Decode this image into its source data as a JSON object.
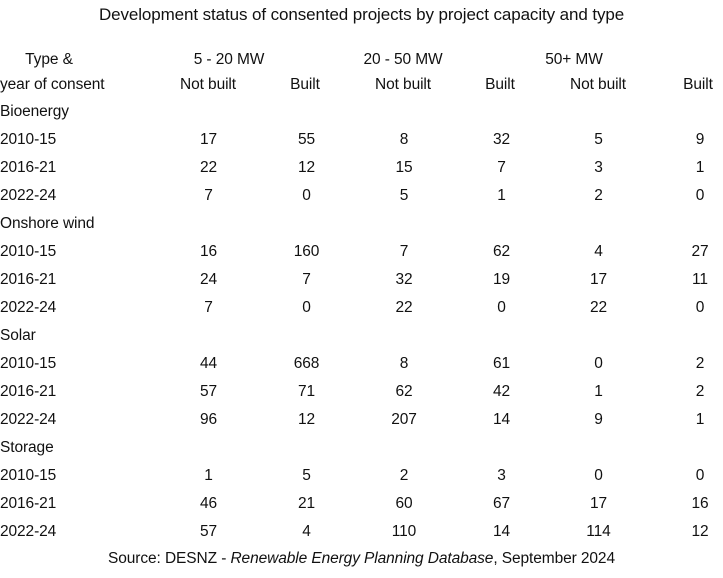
{
  "chart_data": {
    "type": "table",
    "title": "Development status of consented projects by project capacity and type",
    "corner_header_line1": "Type &",
    "corner_header_line2": "year of consent",
    "capacity_groups": [
      "5 - 20 MW",
      "20 - 50 MW",
      "50+ MW"
    ],
    "subheaders": [
      "Not built",
      "Built",
      "Not built",
      "Built",
      "Not built",
      "Built"
    ],
    "columns": [
      "Type & year of consent",
      "5-20 MW Not built",
      "5-20 MW Built",
      "20-50 MW Not built",
      "20-50 MW Built",
      "50+ MW Not built",
      "50+ MW Built"
    ],
    "sections": [
      {
        "type": "Bioenergy",
        "rows": [
          {
            "period": "2010-15",
            "values": [
              17,
              55,
              8,
              32,
              5,
              9
            ]
          },
          {
            "period": "2016-21",
            "values": [
              22,
              12,
              15,
              7,
              3,
              1
            ]
          },
          {
            "period": "2022-24",
            "values": [
              7,
              0,
              5,
              1,
              2,
              0
            ]
          }
        ]
      },
      {
        "type": "Onshore wind",
        "rows": [
          {
            "period": "2010-15",
            "values": [
              16,
              160,
              7,
              62,
              4,
              27
            ]
          },
          {
            "period": "2016-21",
            "values": [
              24,
              7,
              32,
              19,
              17,
              11
            ]
          },
          {
            "period": "2022-24",
            "values": [
              7,
              0,
              22,
              0,
              22,
              0
            ]
          }
        ]
      },
      {
        "type": "Solar",
        "rows": [
          {
            "period": "2010-15",
            "values": [
              44,
              668,
              8,
              61,
              0,
              2
            ]
          },
          {
            "period": "2016-21",
            "values": [
              57,
              71,
              62,
              42,
              1,
              2
            ]
          },
          {
            "period": "2022-24",
            "values": [
              96,
              12,
              207,
              14,
              9,
              1
            ]
          }
        ]
      },
      {
        "type": "Storage",
        "rows": [
          {
            "period": "2010-15",
            "values": [
              1,
              5,
              2,
              3,
              0,
              0
            ]
          },
          {
            "period": "2016-21",
            "values": [
              46,
              21,
              60,
              67,
              17,
              16
            ]
          },
          {
            "period": "2022-24",
            "values": [
              57,
              4,
              110,
              14,
              114,
              12
            ]
          }
        ]
      }
    ],
    "source_prefix": "Source: DESNZ - ",
    "source_italic": "Renewable Energy Planning Database",
    "source_suffix": ", September 2024"
  },
  "colors": {
    "text": "#111111",
    "background": "#ffffff"
  }
}
